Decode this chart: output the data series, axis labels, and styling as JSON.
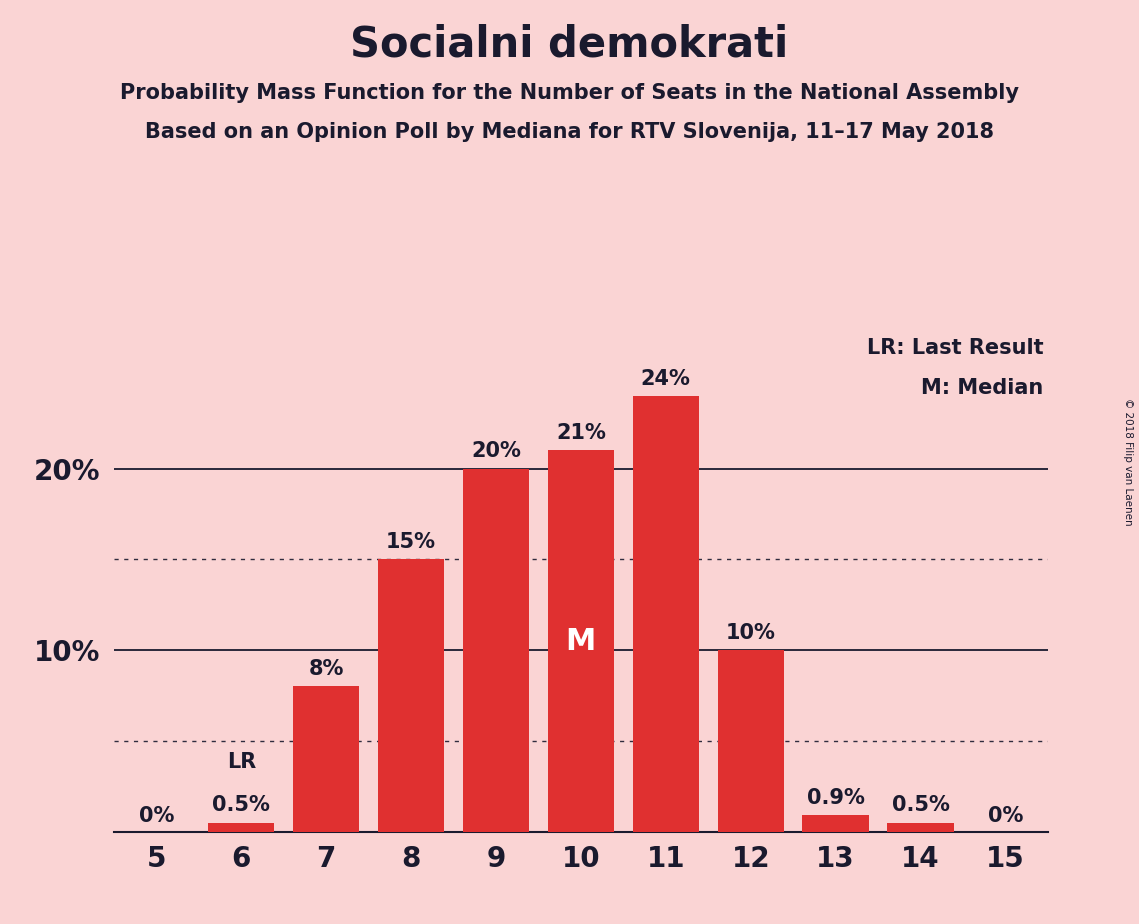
{
  "title": "Socialni demokrati",
  "subtitle1": "Probability Mass Function for the Number of Seats in the National Assembly",
  "subtitle2": "Based on an Opinion Poll by Mediana for RTV Slovenija, 11–17 May 2018",
  "copyright": "© 2018 Filip van Laenen",
  "categories": [
    5,
    6,
    7,
    8,
    9,
    10,
    11,
    12,
    13,
    14,
    15
  ],
  "values": [
    0.0,
    0.5,
    8.0,
    15.0,
    20.0,
    21.0,
    24.0,
    10.0,
    0.9,
    0.5,
    0.0
  ],
  "labels": [
    "0%",
    "0.5%",
    "8%",
    "15%",
    "20%",
    "21%",
    "24%",
    "10%",
    "0.9%",
    "0.5%",
    "0%"
  ],
  "bar_color": "#e03030",
  "background_color": "#fad4d4",
  "text_color": "#1a1a2e",
  "median_seat": 10,
  "lr_seat": 6,
  "yticks": [
    0,
    10,
    20
  ],
  "ytick_labels": [
    "",
    "10%",
    "20%"
  ],
  "dotted_lines": [
    5.0,
    15.0
  ],
  "solid_lines": [
    10.0,
    20.0
  ],
  "legend_lr": "LR: Last Result",
  "legend_m": "M: Median",
  "ylim": [
    0,
    28
  ],
  "bar_width": 0.78
}
